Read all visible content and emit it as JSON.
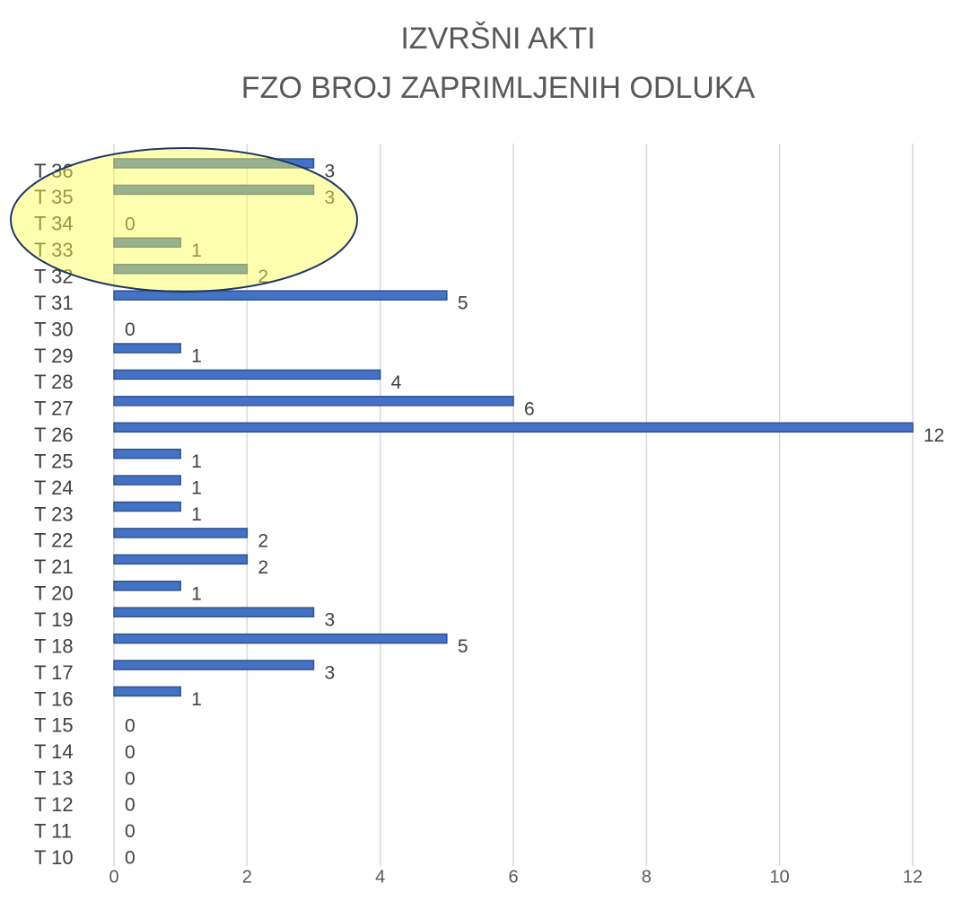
{
  "chart_data": {
    "type": "bar",
    "orientation": "horizontal",
    "title": "IZVRŠNI AKTI",
    "subtitle": "FZO BROJ ZAPRIMLJENIH ODLUKA",
    "categories": [
      "T 10",
      "T 11",
      "T 12",
      "T 13",
      "T 14",
      "T 15",
      "T 16",
      "T 17",
      "T 18",
      "T 19",
      "T 20",
      "T 21",
      "T 22",
      "T 23",
      "T 24",
      "T 25",
      "T 26",
      "T 27",
      "T 28",
      "T 29",
      "T 30",
      "T 31",
      "T 32",
      "T 33",
      "T 34",
      "T 35",
      "T 36"
    ],
    "values": [
      0,
      0,
      0,
      0,
      0,
      0,
      1,
      3,
      5,
      3,
      1,
      2,
      2,
      1,
      1,
      1,
      12,
      6,
      4,
      1,
      0,
      5,
      2,
      1,
      0,
      3,
      3
    ],
    "color": "#4472c4",
    "xlim": [
      0,
      12
    ],
    "xticks": [
      0,
      2,
      4,
      6,
      8,
      10,
      12
    ],
    "grid": true
  }
}
